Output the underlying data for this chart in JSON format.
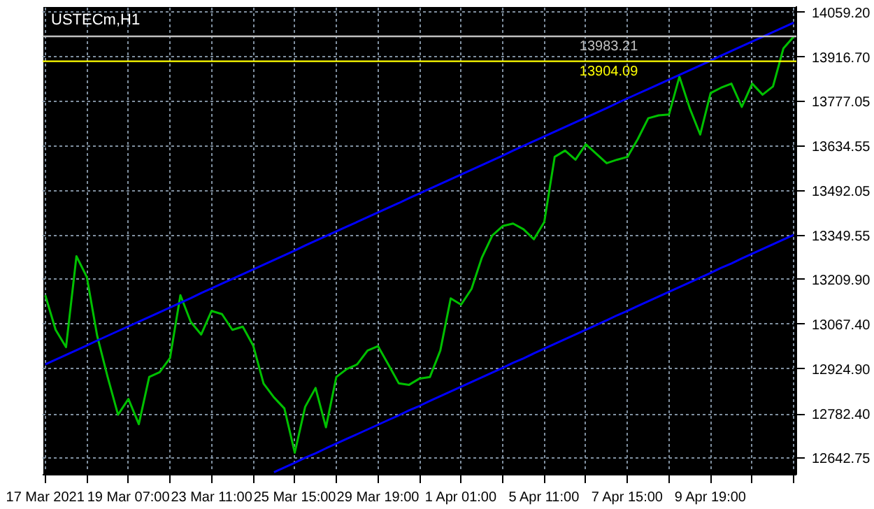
{
  "chart_data": {
    "type": "line",
    "title": "USTECm,H1",
    "categories": [
      "17 Mar 2021",
      null,
      null,
      null,
      null,
      null,
      null,
      null,
      "19 Mar 07:00",
      null,
      null,
      null,
      null,
      null,
      null,
      null,
      "23 Mar 11:00",
      null,
      null,
      null,
      null,
      null,
      null,
      null,
      "25 Mar 15:00",
      null,
      null,
      null,
      null,
      null,
      null,
      null,
      "29 Mar 19:00",
      null,
      null,
      null,
      null,
      null,
      null,
      null,
      "1 Apr 01:00",
      null,
      null,
      null,
      null,
      null,
      null,
      null,
      "5 Apr 11:00",
      null,
      null,
      null,
      null,
      null,
      null,
      null,
      "7 Apr 15:00",
      null,
      null,
      null,
      null,
      null,
      null,
      null,
      "9 Apr 19:00",
      null,
      null,
      null,
      null,
      null,
      null,
      null,
      null
    ],
    "ylim": [
      12589,
      14079
    ],
    "yticks": [
      {
        "value": 12642.75,
        "label": "12642.75"
      },
      {
        "value": 12782.4,
        "label": "12782.40"
      },
      {
        "value": 12924.9,
        "label": "12924.90"
      },
      {
        "value": 13067.4,
        "label": "13067.40"
      },
      {
        "value": 13209.9,
        "label": "13209.90"
      },
      {
        "value": 13349.55,
        "label": "13349.55"
      },
      {
        "value": 13492.05,
        "label": "13492.05"
      },
      {
        "value": 13634.55,
        "label": "13634.55"
      },
      {
        "value": 13777.05,
        "label": "13777.05"
      },
      {
        "value": 13916.7,
        "label": "13916.70"
      },
      {
        "value": 14059.2,
        "label": "14059.20"
      }
    ],
    "grid": true,
    "line_style": "solid",
    "series": [
      {
        "color": "#00c000",
        "values": [
          13160,
          13050,
          12995,
          13284,
          13218,
          13030,
          12900,
          12780,
          12830,
          12750,
          12900,
          12915,
          12960,
          13160,
          13075,
          13035,
          13110,
          13100,
          13050,
          13060,
          13000,
          12879,
          12835,
          12800,
          12659,
          12805,
          12865,
          12740,
          12900,
          12925,
          12940,
          12984,
          12998,
          12940,
          12880,
          12875,
          12895,
          12900,
          12984,
          13150,
          13130,
          13180,
          13280,
          13350,
          13380,
          13388,
          13370,
          13338,
          13393,
          13600,
          13620,
          13591,
          13640,
          13610,
          13580,
          13591,
          13600,
          13657,
          13723,
          13732,
          13735,
          13855,
          13754,
          13671,
          13803,
          13820,
          13833,
          13759,
          13833,
          13798,
          13824,
          13945,
          13983
        ]
      },
      {
        "color": "#0000ff",
        "values": [
          12940,
          12955,
          12970,
          12985,
          13000,
          13016,
          13031,
          13046,
          13061,
          13076,
          13091,
          13106,
          13121,
          13136,
          13151,
          13167,
          13182,
          13197,
          13212,
          13227,
          13242,
          13257,
          13272,
          13287,
          13302,
          13318,
          13333,
          13348,
          13363,
          13378,
          13393,
          13408,
          13423,
          13438,
          13453,
          13469,
          13484,
          13499,
          13514,
          13529,
          13544,
          13559,
          13574,
          13589,
          13604,
          13620,
          13635,
          13650,
          13665,
          13680,
          13695,
          13710,
          13725,
          13740,
          13755,
          13771,
          13786,
          13801,
          13816,
          13831,
          13846,
          13861,
          13876,
          13891,
          13906,
          13922,
          13937,
          13952,
          13967,
          13982,
          13997,
          14012,
          14027
        ]
      },
      {
        "color": "#0000ff",
        "values": [
          null,
          null,
          null,
          null,
          null,
          null,
          null,
          null,
          null,
          null,
          null,
          null,
          null,
          null,
          null,
          null,
          null,
          null,
          null,
          null,
          null,
          null,
          12597,
          12612,
          12627,
          12643,
          12657,
          12673,
          12688,
          12703,
          12718,
          12733,
          12748,
          12763,
          12778,
          12794,
          12808,
          12824,
          12839,
          12854,
          12869,
          12884,
          12899,
          12914,
          12929,
          12945,
          12959,
          12975,
          12990,
          13005,
          13020,
          13035,
          13050,
          13065,
          13080,
          13096,
          13110,
          13126,
          13141,
          13156,
          13171,
          13186,
          13201,
          13216,
          13231,
          13247,
          13261,
          13277,
          13292,
          13307,
          13322,
          13337,
          13352
        ]
      }
    ],
    "ref_lines": [
      {
        "axis": "y",
        "value": 13983.21,
        "label": "13983.21",
        "color": "#c0c0c0"
      },
      {
        "axis": "y",
        "value": 13904.09,
        "label": "13904.09",
        "color": "#ffff00"
      }
    ]
  }
}
